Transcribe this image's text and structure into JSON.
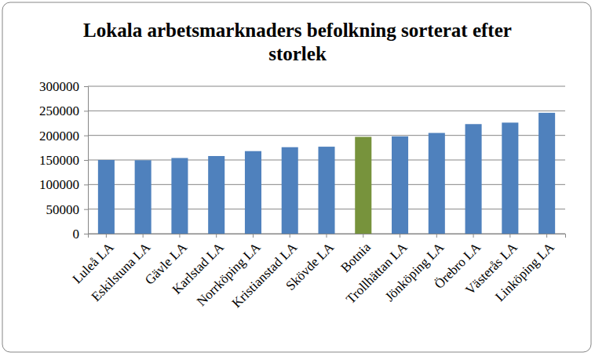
{
  "chart_data": {
    "type": "bar",
    "title": "Lokala arbetsmarknaders befolkning  sorterat efter storlek",
    "categories": [
      "Luleå LA",
      "Eskilstuna LA",
      "Gävle LA",
      "Karlstad LA",
      "Norrköping LA",
      "Kristianstad LA",
      "Skövde LA",
      "Botnia",
      "Trollhättan LA",
      "Jönköping LA",
      "Örebro LA",
      "Västerås LA",
      "Linköping LA"
    ],
    "values": [
      150000,
      149500,
      154000,
      158000,
      168000,
      176000,
      177000,
      197000,
      198000,
      205000,
      223000,
      226000,
      246000
    ],
    "colors": [
      "#4f81bd",
      "#4f81bd",
      "#4f81bd",
      "#4f81bd",
      "#4f81bd",
      "#4f81bd",
      "#4f81bd",
      "#77933c",
      "#4f81bd",
      "#4f81bd",
      "#4f81bd",
      "#4f81bd",
      "#4f81bd"
    ],
    "ylim": [
      0,
      300000
    ],
    "yticks": [
      0,
      50000,
      100000,
      150000,
      200000,
      250000,
      300000
    ],
    "grid": true
  }
}
